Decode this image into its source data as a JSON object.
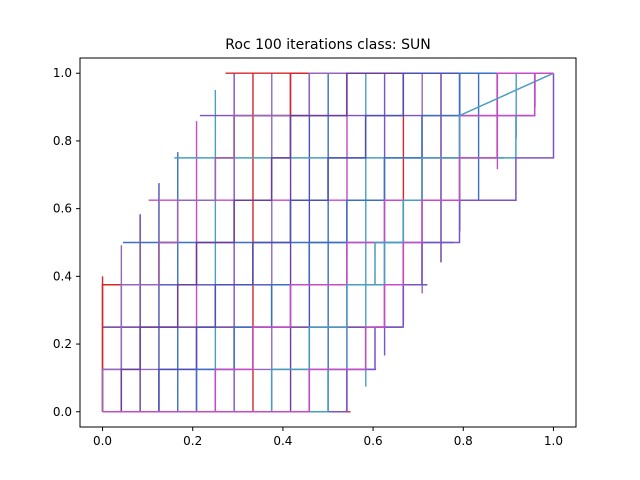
{
  "chart_data": {
    "type": "line",
    "title": "Roc 100 iterations class: SUN",
    "xlabel": "",
    "ylabel": "",
    "xlim": [
      -0.05,
      1.05
    ],
    "ylim": [
      -0.045,
      1.045
    ],
    "xticks": [
      0.0,
      0.2,
      0.4,
      0.6,
      0.8,
      1.0
    ],
    "yticks": [
      0.0,
      0.2,
      0.4,
      0.6,
      0.8,
      1.0
    ],
    "xtick_labels": [
      "0.0",
      "0.2",
      "0.4",
      "0.6",
      "0.8",
      "1.0"
    ],
    "ytick_labels": [
      "0.0",
      "0.2",
      "0.4",
      "0.6",
      "0.8",
      "1.0"
    ],
    "grid": false,
    "legend": "none",
    "x_step": 0.0417,
    "y_step": 0.125,
    "colors": [
      "#d62728",
      "#9467bd",
      "#6a3d9a",
      "#4b4fb8",
      "#3b6fc4",
      "#c44cc4",
      "#4a9ebf",
      "#7b52c8"
    ],
    "series": [
      {
        "color": "#d62728",
        "x": [
          0.0,
          0.0,
          0.0,
          0.0417,
          0.0417,
          0.0833,
          0.0833,
          0.125,
          0.125,
          0.1667,
          0.1667,
          0.2083,
          0.2083,
          0.25,
          0.25,
          0.2917,
          0.2917,
          0.4167,
          0.4167,
          1.0
        ],
        "y": [
          0.0,
          0.125,
          0.375,
          0.375,
          0.375,
          0.375,
          0.375,
          0.375,
          0.5,
          0.5,
          0.625,
          0.625,
          0.625,
          0.625,
          0.75,
          0.75,
          0.875,
          0.875,
          1.0,
          1.0
        ]
      },
      {
        "color": "#9467bd",
        "x": [
          0.0,
          0.0,
          0.0417,
          0.0417,
          0.125,
          0.125,
          0.1667,
          0.1667,
          0.25,
          0.25,
          0.2917,
          0.2917,
          0.3333,
          0.3333,
          0.4583,
          0.4583,
          1.0
        ],
        "y": [
          0.0,
          0.125,
          0.125,
          0.375,
          0.375,
          0.5,
          0.5,
          0.625,
          0.625,
          0.75,
          0.75,
          0.875,
          0.875,
          0.875,
          0.875,
          1.0,
          1.0
        ]
      },
      {
        "color": "#6a3d9a",
        "x": [
          0.0,
          0.0417,
          0.0417,
          0.0833,
          0.0833,
          0.1667,
          0.1667,
          0.2083,
          0.2083,
          0.2917,
          0.2917,
          0.375,
          0.375,
          0.4167,
          0.4167,
          0.5417,
          0.5417,
          1.0
        ],
        "y": [
          0.0,
          0.0,
          0.125,
          0.125,
          0.25,
          0.25,
          0.375,
          0.375,
          0.5,
          0.5,
          0.625,
          0.625,
          0.75,
          0.75,
          0.875,
          0.875,
          1.0,
          1.0
        ]
      },
      {
        "color": "#4b4fb8",
        "x": [
          0.0,
          0.125,
          0.125,
          0.2083,
          0.2083,
          0.25,
          0.25,
          0.3333,
          0.3333,
          0.4167,
          0.4167,
          0.5,
          0.5,
          0.5833,
          0.5833,
          0.6667,
          0.6667,
          1.0
        ],
        "y": [
          0.0,
          0.0,
          0.125,
          0.125,
          0.25,
          0.25,
          0.375,
          0.375,
          0.5,
          0.5,
          0.625,
          0.625,
          0.75,
          0.75,
          0.875,
          0.875,
          1.0,
          1.0
        ]
      },
      {
        "color": "#3b6fc4",
        "x": [
          0.0,
          0.2083,
          0.2083,
          0.2917,
          0.2917,
          0.375,
          0.375,
          0.4583,
          0.4583,
          0.5417,
          0.5417,
          0.625,
          0.625,
          0.7083,
          0.7083,
          0.7917,
          0.7917,
          1.0
        ],
        "y": [
          0.0,
          0.0,
          0.125,
          0.125,
          0.25,
          0.25,
          0.375,
          0.375,
          0.5,
          0.5,
          0.625,
          0.625,
          0.75,
          0.75,
          0.875,
          0.875,
          1.0,
          1.0
        ]
      },
      {
        "color": "#c44cc4",
        "x": [
          0.0,
          0.25,
          0.25,
          0.3333,
          0.3333,
          0.4167,
          0.4167,
          0.5417,
          0.5417,
          0.625,
          0.625,
          0.7083,
          0.7083,
          0.7917,
          0.7917,
          0.875,
          0.875,
          1.0
        ],
        "y": [
          0.0,
          0.0,
          0.125,
          0.125,
          0.25,
          0.25,
          0.375,
          0.375,
          0.5,
          0.5,
          0.625,
          0.625,
          0.75,
          0.75,
          0.875,
          0.875,
          1.0,
          1.0
        ]
      },
      {
        "color": "#4a9ebf",
        "x": [
          0.0,
          0.375,
          0.375,
          0.4583,
          0.4583,
          0.5417,
          0.5417,
          0.625,
          0.625,
          0.6667,
          0.6667,
          0.7917,
          0.7917,
          0.9167,
          0.9167,
          0.9583,
          0.9583,
          1.0
        ],
        "y": [
          0.0,
          0.0,
          0.125,
          0.125,
          0.25,
          0.25,
          0.375,
          0.375,
          0.5,
          0.5,
          0.625,
          0.625,
          0.75,
          0.75,
          0.875,
          0.875,
          1.0,
          1.0
        ]
      },
      {
        "color": "#7b52c8",
        "x": [
          0.0,
          0.5417,
          0.5417,
          0.6042,
          0.6042,
          0.6667,
          0.6667,
          0.7083,
          0.7083,
          0.7917,
          0.7917,
          0.9167,
          0.9167,
          1.0,
          1.0
        ],
        "y": [
          0.0,
          0.0,
          0.125,
          0.125,
          0.25,
          0.25,
          0.375,
          0.375,
          0.5,
          0.5,
          0.625,
          0.625,
          0.75,
          0.75,
          1.0
        ]
      },
      {
        "color": "#4a9ebf",
        "x": [
          0.0,
          0.5,
          0.5,
          0.5417,
          0.5417,
          0.6042,
          0.6042,
          0.6667,
          0.6667,
          0.7083,
          0.7083,
          0.7917,
          0.7917,
          1.0
        ],
        "y": [
          0.0,
          0.0,
          0.125,
          0.125,
          0.375,
          0.375,
          0.5,
          0.5,
          0.625,
          0.625,
          0.75,
          0.75,
          0.875,
          1.0
        ]
      },
      {
        "color": "#c44cc4",
        "x": [
          0.0,
          0.4583,
          0.4583,
          0.5833,
          0.5833,
          0.625,
          0.625,
          0.6667,
          0.6667,
          0.7083,
          0.7083,
          0.7917,
          0.7917,
          0.875,
          0.875,
          0.9583,
          0.9583,
          1.0
        ],
        "y": [
          0.0,
          0.0,
          0.125,
          0.125,
          0.25,
          0.25,
          0.375,
          0.375,
          0.5,
          0.5,
          0.625,
          0.625,
          0.75,
          0.75,
          0.875,
          0.875,
          1.0,
          1.0
        ]
      }
    ]
  }
}
